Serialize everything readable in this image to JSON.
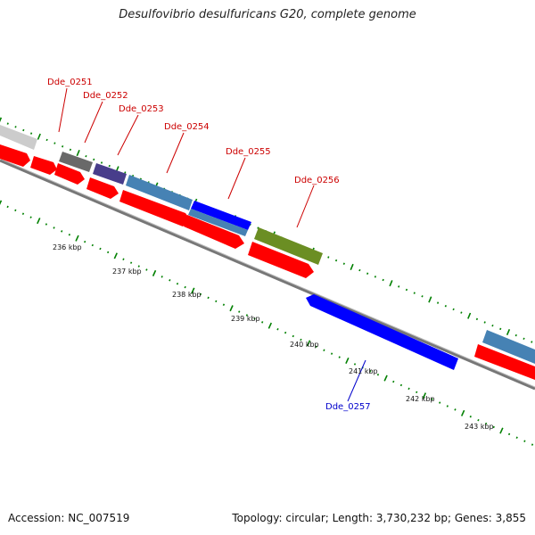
{
  "title": "Desulfovibrio desulfuricans G20, complete genome",
  "accession_label": "Accession: NC_007519",
  "footer_info": "Topology: circular; Length: 3,730,232 bp; Genes: 3,855",
  "colors": {
    "cds": "#ff0000",
    "forward_label": "#cc0000",
    "reverse_label": "#0000cc",
    "gc_skew": "#008000",
    "backbone": "#808080"
  },
  "scale_ticks": [
    {
      "label": "236 kbp"
    },
    {
      "label": "237 kbp"
    },
    {
      "label": "238 kbp"
    },
    {
      "label": "239 kbp"
    },
    {
      "label": "240 kbp"
    },
    {
      "label": "241 kbp"
    },
    {
      "label": "242 kbp"
    },
    {
      "label": "243 kbp"
    }
  ],
  "genes": [
    {
      "id": "Dde_0251",
      "strand": "forward",
      "color": "#696969"
    },
    {
      "id": "Dde_0252",
      "strand": "forward",
      "color": "#483d8b"
    },
    {
      "id": "Dde_0253",
      "strand": "forward",
      "color": "#4682b4"
    },
    {
      "id": "Dde_0254",
      "strand": "forward",
      "color": "#0000ff"
    },
    {
      "id": "Dde_0255",
      "strand": "forward",
      "color": "#4682b4"
    },
    {
      "id": "Dde_0256",
      "strand": "forward",
      "color": "#6b8e23"
    },
    {
      "id": "Dde_0257",
      "strand": "reverse",
      "color": "#0000ff"
    }
  ]
}
